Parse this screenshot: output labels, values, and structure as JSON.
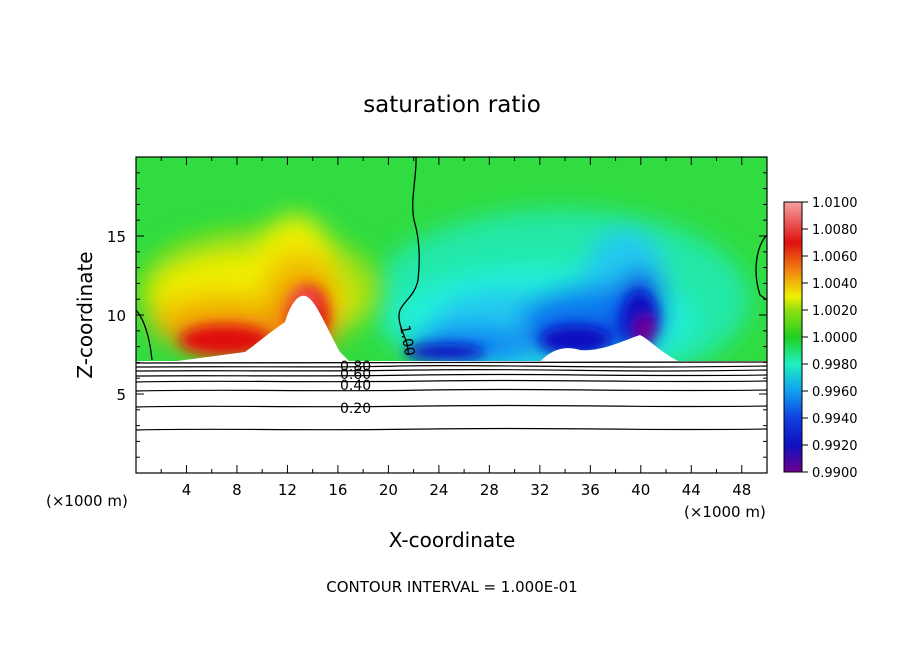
{
  "chart_data": {
    "type": "heatmap",
    "title": "saturation ratio",
    "xlabel": "X-coordinate",
    "ylabel": "Z-coordinate",
    "x_unit_left": "(×1000 m)",
    "x_unit_right": "(×1000 m)",
    "xlim": [
      0,
      50
    ],
    "ylim": [
      0,
      20
    ],
    "x_ticks": [
      "4",
      "8",
      "12",
      "16",
      "20",
      "24",
      "28",
      "32",
      "36",
      "40",
      "44",
      "48"
    ],
    "y_ticks": [
      "5",
      "10",
      "15"
    ],
    "colorbar": {
      "labels": [
        "1.0100",
        "1.0080",
        "1.0060",
        "1.0040",
        "1.0020",
        "1.0000",
        "0.9980",
        "0.9960",
        "0.9940",
        "0.9920",
        "0.9900"
      ],
      "colors": [
        "#f7a0a0",
        "#f05050",
        "#e01010",
        "#f08010",
        "#f0c000",
        "#f0f000",
        "#90e010",
        "#20d020",
        "#20e080",
        "#20f0c0",
        "#20c0f0",
        "#1080f0",
        "#1040e0",
        "#1010c0",
        "#4010a0",
        "#700090"
      ]
    },
    "contour_labels": [
      "1.00",
      "0.80",
      "0.60",
      "0.40",
      "0.20"
    ],
    "footnote": "CONTOUR INTERVAL = 1.000E-01"
  }
}
